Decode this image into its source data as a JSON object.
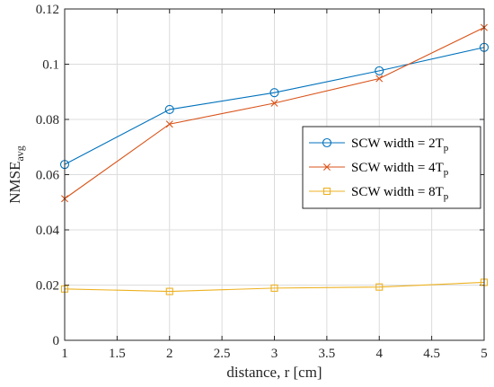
{
  "chart_data": {
    "type": "line",
    "xlabel": "distance, r [cm]",
    "ylabel": {
      "main": "NMSE",
      "sub": "avg"
    },
    "xlim": [
      1,
      5
    ],
    "ylim": [
      0,
      0.12
    ],
    "xticks": [
      1,
      1.5,
      2,
      2.5,
      3,
      3.5,
      4,
      4.5,
      5
    ],
    "xtick_labels": [
      "1",
      "1.5",
      "2",
      "2.5",
      "3",
      "3.5",
      "4",
      "4.5",
      "5"
    ],
    "yticks": [
      0,
      0.02,
      0.04,
      0.06,
      0.08,
      0.1,
      0.12
    ],
    "ytick_labels": [
      "0",
      "0.02",
      "0.04",
      "0.06",
      "0.08",
      "0.1",
      "0.12"
    ],
    "grid": true,
    "legend_position": "right",
    "x": [
      1,
      2,
      3,
      4,
      5
    ],
    "series": [
      {
        "name": "SCW width = 2T",
        "name_sub": "p",
        "color": "#0072BD",
        "marker": "circle",
        "values": [
          0.0637,
          0.0836,
          0.0897,
          0.0976,
          0.1061
        ]
      },
      {
        "name": "SCW width = 4T",
        "name_sub": "p",
        "color": "#D95319",
        "marker": "x",
        "values": [
          0.0513,
          0.0783,
          0.0859,
          0.0948,
          0.1133
        ]
      },
      {
        "name": "SCW width = 8T",
        "name_sub": "p",
        "color": "#EDB120",
        "marker": "square",
        "values": [
          0.0186,
          0.0177,
          0.0189,
          0.0193,
          0.021
        ]
      }
    ]
  }
}
